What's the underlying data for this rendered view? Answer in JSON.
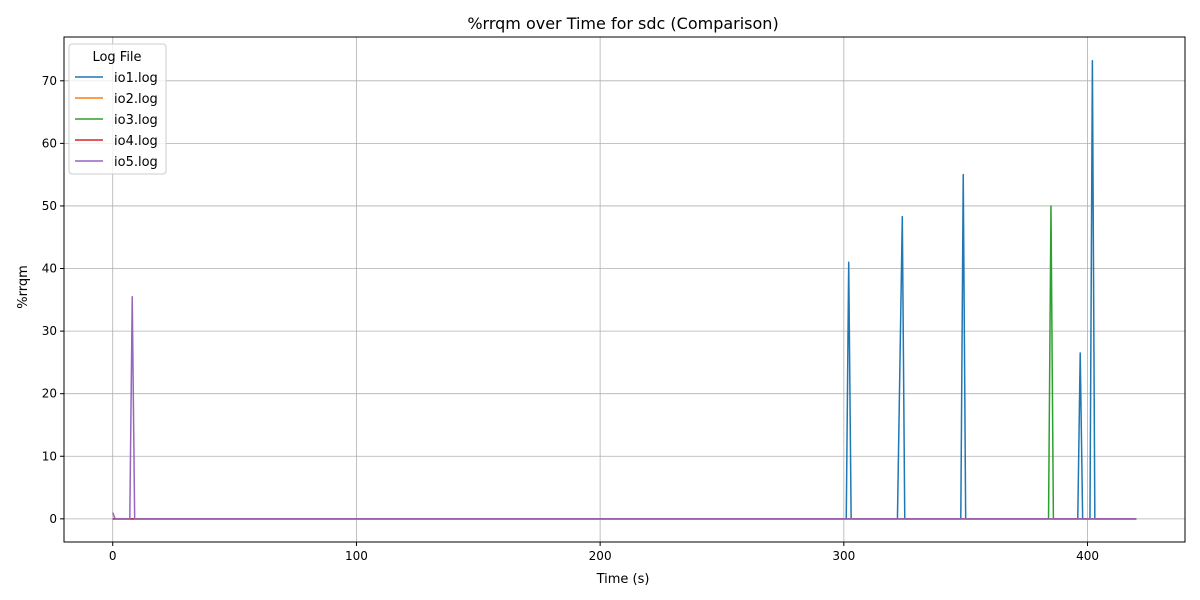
{
  "chart_data": {
    "type": "line",
    "title": "%rrqm over Time for sdc (Comparison)",
    "xlabel": "Time (s)",
    "ylabel": "%rrqm",
    "xlim": [
      -20,
      440
    ],
    "ylim": [
      -3.7,
      77.0
    ],
    "xticks": [
      0,
      100,
      200,
      300,
      400
    ],
    "yticks": [
      0,
      10,
      20,
      30,
      40,
      50,
      60,
      70
    ],
    "grid": true,
    "legend": {
      "title": "Log File",
      "placement": "top-left"
    },
    "series": [
      {
        "name": "io1.log",
        "color": "#1f77b4",
        "x": [
          0,
          301,
          302,
          303,
          322,
          324,
          325,
          348,
          349,
          350,
          396,
          397,
          398,
          401,
          402,
          403,
          420
        ],
        "y": [
          0,
          0,
          41.0,
          0,
          0,
          48.3,
          0,
          0,
          55.0,
          0,
          0,
          26.5,
          0,
          0,
          73.2,
          0,
          0
        ]
      },
      {
        "name": "io2.log",
        "color": "#ff7f0e",
        "x": [
          0,
          420
        ],
        "y": [
          0,
          0
        ]
      },
      {
        "name": "io3.log",
        "color": "#2ca02c",
        "x": [
          0,
          384,
          385,
          386,
          420
        ],
        "y": [
          0,
          0,
          50.0,
          0,
          0
        ]
      },
      {
        "name": "io4.log",
        "color": "#d62728",
        "x": [
          0,
          7,
          8,
          9,
          420
        ],
        "y": [
          0,
          0,
          0,
          0,
          0
        ]
      },
      {
        "name": "io5.log",
        "color": "#9467bd",
        "x": [
          0,
          1,
          7,
          8,
          9,
          420
        ],
        "y": [
          1.0,
          0,
          0,
          35.5,
          0,
          0
        ]
      }
    ]
  }
}
